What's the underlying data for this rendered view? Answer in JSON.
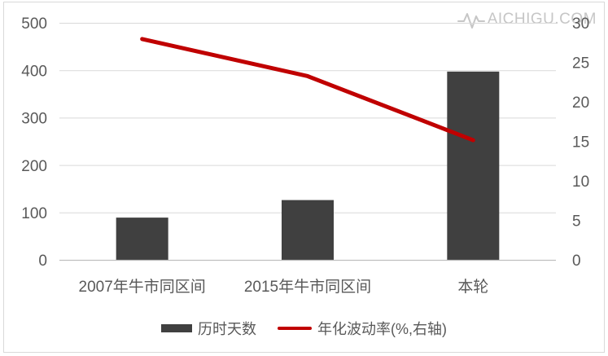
{
  "watermark": {
    "text": "AICHIGU.COM",
    "icon": "pulse-icon"
  },
  "chart_data": {
    "type": "combo",
    "categories": [
      "2007年牛市同区间",
      "2015年牛市同区间",
      "本轮"
    ],
    "series": [
      {
        "name": "历时天数",
        "type": "bar",
        "axis": "left",
        "color": "#404040",
        "values": [
          90,
          127,
          398
        ]
      },
      {
        "name": "年化波动率(%,右轴)",
        "type": "line",
        "axis": "right",
        "color": "#c00000",
        "values": [
          28,
          23.3,
          15.2
        ]
      }
    ],
    "left_axis": {
      "min": 0,
      "max": 500,
      "ticks": [
        0,
        100,
        200,
        300,
        400,
        500
      ]
    },
    "right_axis": {
      "min": 0,
      "max": 30,
      "ticks": [
        0,
        5,
        10,
        15,
        20,
        25,
        30
      ]
    },
    "grid": true,
    "legend_position": "bottom"
  },
  "colors": {
    "grid": "#d9d9d9",
    "axis_line": "#bfbfbf",
    "tick_text": "#595959",
    "category_text": "#595959",
    "watermark": "#c6c6c6",
    "background": "#ffffff",
    "border": "#d9d9d9"
  }
}
